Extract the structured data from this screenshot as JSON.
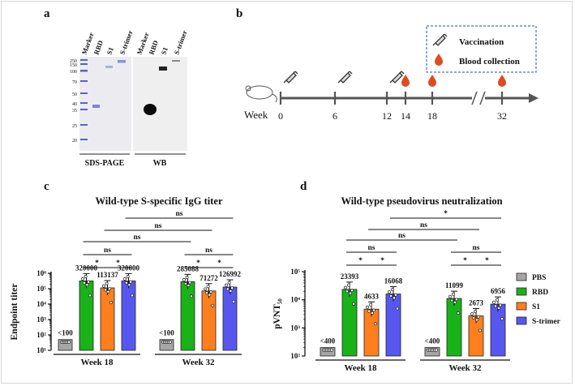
{
  "panel_labels": {
    "a": "a",
    "b": "b",
    "c": "c",
    "d": "d"
  },
  "panel_a": {
    "ladder": [
      "250",
      "150",
      "100",
      "70",
      "50",
      "40",
      "35",
      "25",
      "20"
    ],
    "lanes": [
      "Marker",
      "RBD",
      "S1",
      "S-trimer"
    ],
    "wb_lanes": [
      "Marker",
      "RBD",
      "S1",
      "S-trimer"
    ],
    "caption_sds": "SDS-PAGE",
    "caption_wb": "WB"
  },
  "panel_b": {
    "legend_vaccination": "Vaccination",
    "legend_blood": "Blood collection",
    "axis_label": "Week",
    "weeks": [
      "0",
      "6",
      "12",
      "14",
      "18",
      "32"
    ]
  },
  "groups_legend": [
    {
      "name": "PBS",
      "color": "#a6a6a6"
    },
    {
      "name": "RBD",
      "color": "#19b219"
    },
    {
      "name": "S1",
      "color": "#ff7f1e"
    },
    {
      "name": "S-trimer",
      "color": "#5757f0"
    }
  ],
  "chart_data": [
    {
      "type": "bar",
      "panel": "c",
      "title": "Wild-type S-specific IgG titer",
      "ylabel": "Endpoint titer",
      "yscale": "log",
      "ylim": [
        10,
        1000000
      ],
      "yticks": [
        "10¹",
        "10²",
        "10³",
        "10⁴",
        "10⁵",
        "10⁶"
      ],
      "categories": [
        "Week 18",
        "Week 32"
      ],
      "series": [
        {
          "name": "PBS",
          "values": [
            50,
            50
          ],
          "labels": [
            "<100",
            "<100"
          ]
        },
        {
          "name": "RBD",
          "values": [
            320000,
            285088
          ],
          "labels": [
            "320000",
            "285088"
          ]
        },
        {
          "name": "S1",
          "values": [
            113137,
            71272
          ],
          "labels": [
            "113137",
            "71272"
          ]
        },
        {
          "name": "S-trimer",
          "values": [
            320000,
            126992
          ],
          "labels": [
            "320000",
            "126992"
          ]
        }
      ],
      "significance": [
        "*",
        "*",
        "ns",
        "ns",
        "*",
        "*",
        "ns",
        "ns",
        "ns",
        "ns"
      ]
    },
    {
      "type": "bar",
      "panel": "d",
      "title": "Wild-type pseudovirus neutralization",
      "ylabel": "pVNT₅₀",
      "yscale": "log",
      "ylim": [
        100,
        100000
      ],
      "yticks": [
        "10²",
        "10³",
        "10⁴",
        "10⁵"
      ],
      "categories": [
        "Week 18",
        "Week 32"
      ],
      "series": [
        {
          "name": "PBS",
          "values": [
            200,
            200
          ],
          "labels": [
            "<400",
            "<400"
          ]
        },
        {
          "name": "RBD",
          "values": [
            23393,
            11099
          ],
          "labels": [
            "23393",
            "11099"
          ]
        },
        {
          "name": "S1",
          "values": [
            4633,
            2673
          ],
          "labels": [
            "4633",
            "2673"
          ]
        },
        {
          "name": "S-trimer",
          "values": [
            16068,
            6956
          ],
          "labels": [
            "16068",
            "6956"
          ]
        }
      ],
      "significance": [
        "*",
        "*",
        "ns",
        "ns",
        "*",
        "*",
        "ns",
        "ns",
        "ns",
        "*"
      ]
    }
  ]
}
